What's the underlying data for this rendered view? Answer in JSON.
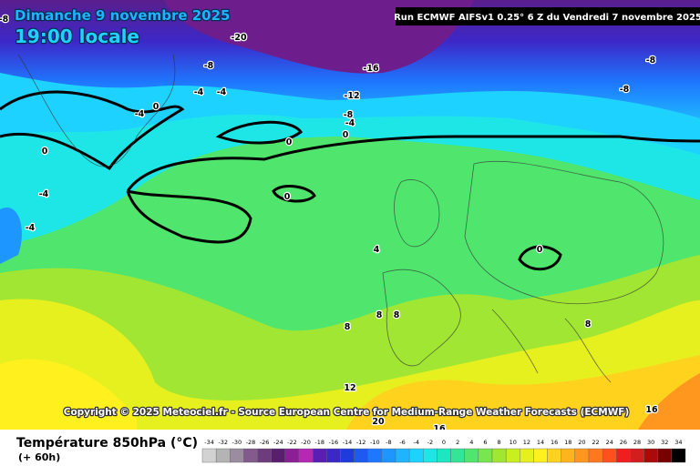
{
  "header": {
    "date": "Dimanche 9 novembre 2025",
    "time": "19:00 locale",
    "run": "Run ECMWF AIFSv1 0.25° 6 Z du Vendredi 7 novembre 2025"
  },
  "map": {
    "contour_labels": [
      -8,
      -20,
      -8,
      -16,
      -8,
      -4,
      -4,
      -12,
      -8,
      -4,
      0,
      -8,
      -4,
      0,
      0,
      0,
      -4,
      0,
      -4,
      4,
      0,
      8,
      8,
      8,
      8,
      12,
      20,
      16,
      16
    ]
  },
  "copyright": "Copyright © 2025 Meteociel.fr - Source European Centre for Medium-Range Weather Forecasts (ECMWF)",
  "legend": {
    "title": "Température 850hPa (°C)",
    "lead": "(+ 60h)",
    "values": [
      -34,
      -32,
      -30,
      -28,
      -26,
      -24,
      -22,
      -20,
      -18,
      -16,
      -14,
      -12,
      -10,
      -8,
      -6,
      -4,
      -2,
      0,
      2,
      4,
      6,
      8,
      10,
      12,
      14,
      16,
      18,
      20,
      22,
      24,
      26,
      28,
      30,
      32,
      34
    ],
    "colors": [
      "#d2d2d2",
      "#b4b4b4",
      "#9b8ca0",
      "#825a8c",
      "#6e3c7d",
      "#5a1e6e",
      "#8c1e96",
      "#b428b4",
      "#5a1eb4",
      "#3c28c8",
      "#1e3cdc",
      "#1e5af0",
      "#1e78ff",
      "#1e96ff",
      "#1eb4ff",
      "#1ed2ff",
      "#1ee6e6",
      "#1ee6be",
      "#32e696",
      "#50e66e",
      "#78e650",
      "#a0e632",
      "#c8f01e",
      "#e6f01e",
      "#fff01e",
      "#ffd21e",
      "#ffb41e",
      "#ff961e",
      "#ff781e",
      "#ff501e",
      "#f01e1e",
      "#d21e1e",
      "#aa0a0a",
      "#780000",
      "#000000"
    ]
  }
}
